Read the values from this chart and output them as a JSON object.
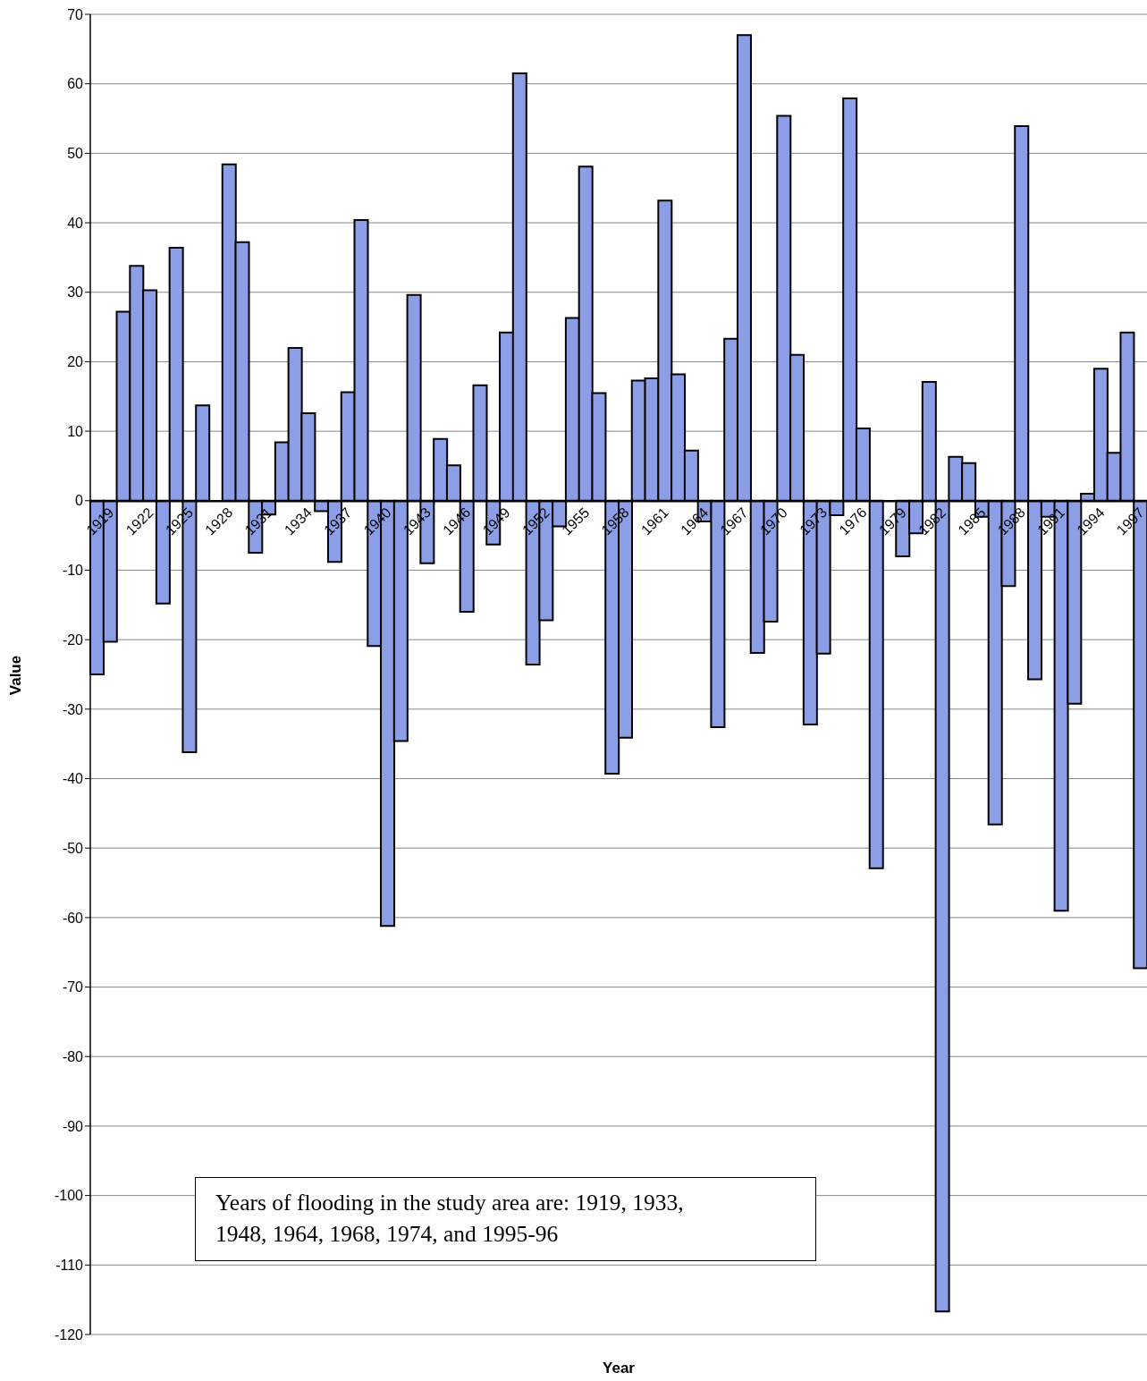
{
  "chart_data": {
    "type": "bar",
    "xlabel": "Year",
    "ylabel": "Value",
    "annotations": [
      "Years of flooding in the study area are: 1919, 1933, 1948, 1964, 1968, 1974, and 1995-96"
    ],
    "categories": [
      "1919",
      null,
      null,
      "1922",
      null,
      null,
      "1925",
      null,
      null,
      "1928",
      null,
      null,
      "1931",
      null,
      null,
      "1934",
      null,
      null,
      "1937",
      null,
      null,
      "1940",
      null,
      null,
      "1943",
      null,
      null,
      "1946",
      null,
      null,
      "1949",
      null,
      null,
      "1952",
      null,
      null,
      "1955",
      null,
      null,
      "1958",
      null,
      null,
      "1961",
      null,
      null,
      "1964",
      null,
      null,
      "1967",
      null,
      null,
      "1970",
      null,
      null,
      "1973",
      null,
      null,
      "1976",
      null,
      null,
      "1979",
      null,
      null,
      "1982",
      null,
      null,
      "1985",
      null,
      null,
      "1988",
      null,
      null,
      "1991",
      null,
      null,
      "1994",
      null,
      null,
      "1997",
      null
    ],
    "values": [
      -25,
      -20.3,
      27.2,
      33.8,
      30.3,
      -14.8,
      36.4,
      -36.2,
      13.7,
      null,
      48.4,
      37.2,
      -7.5,
      -2,
      8.4,
      22,
      12.6,
      -1.5,
      -8.8,
      15.6,
      40.4,
      -20.9,
      -61.2,
      -34.6,
      29.6,
      -9,
      8.9,
      5.1,
      -16,
      16.6,
      -6.3,
      24.2,
      61.5,
      -23.6,
      -17.2,
      -3.7,
      26.3,
      48.1,
      15.5,
      -39.3,
      -34.1,
      17.3,
      17.6,
      43.2,
      18.2,
      7.2,
      -3,
      -32.6,
      23.3,
      67,
      -21.9,
      -17.4,
      55.4,
      21,
      -32.2,
      -22,
      -2.1,
      57.9,
      10.4,
      -52.9,
      null,
      -8,
      -4.7,
      17.1,
      -116.7,
      6.3,
      5.4,
      -2.3,
      -46.6,
      -12.3,
      53.9,
      -25.7,
      -2.3,
      -59,
      -29.2,
      1,
      19,
      6.9,
      24.2,
      -67.3
    ],
    "color": "#8c9fe6",
    "ylim": [
      -120,
      70
    ],
    "yticks": [
      -120,
      -110,
      -100,
      -90,
      -80,
      -70,
      -60,
      -50,
      -40,
      -30,
      -20,
      -10,
      0,
      10,
      20,
      30,
      40,
      50,
      60,
      70
    ],
    "grid": "y"
  }
}
